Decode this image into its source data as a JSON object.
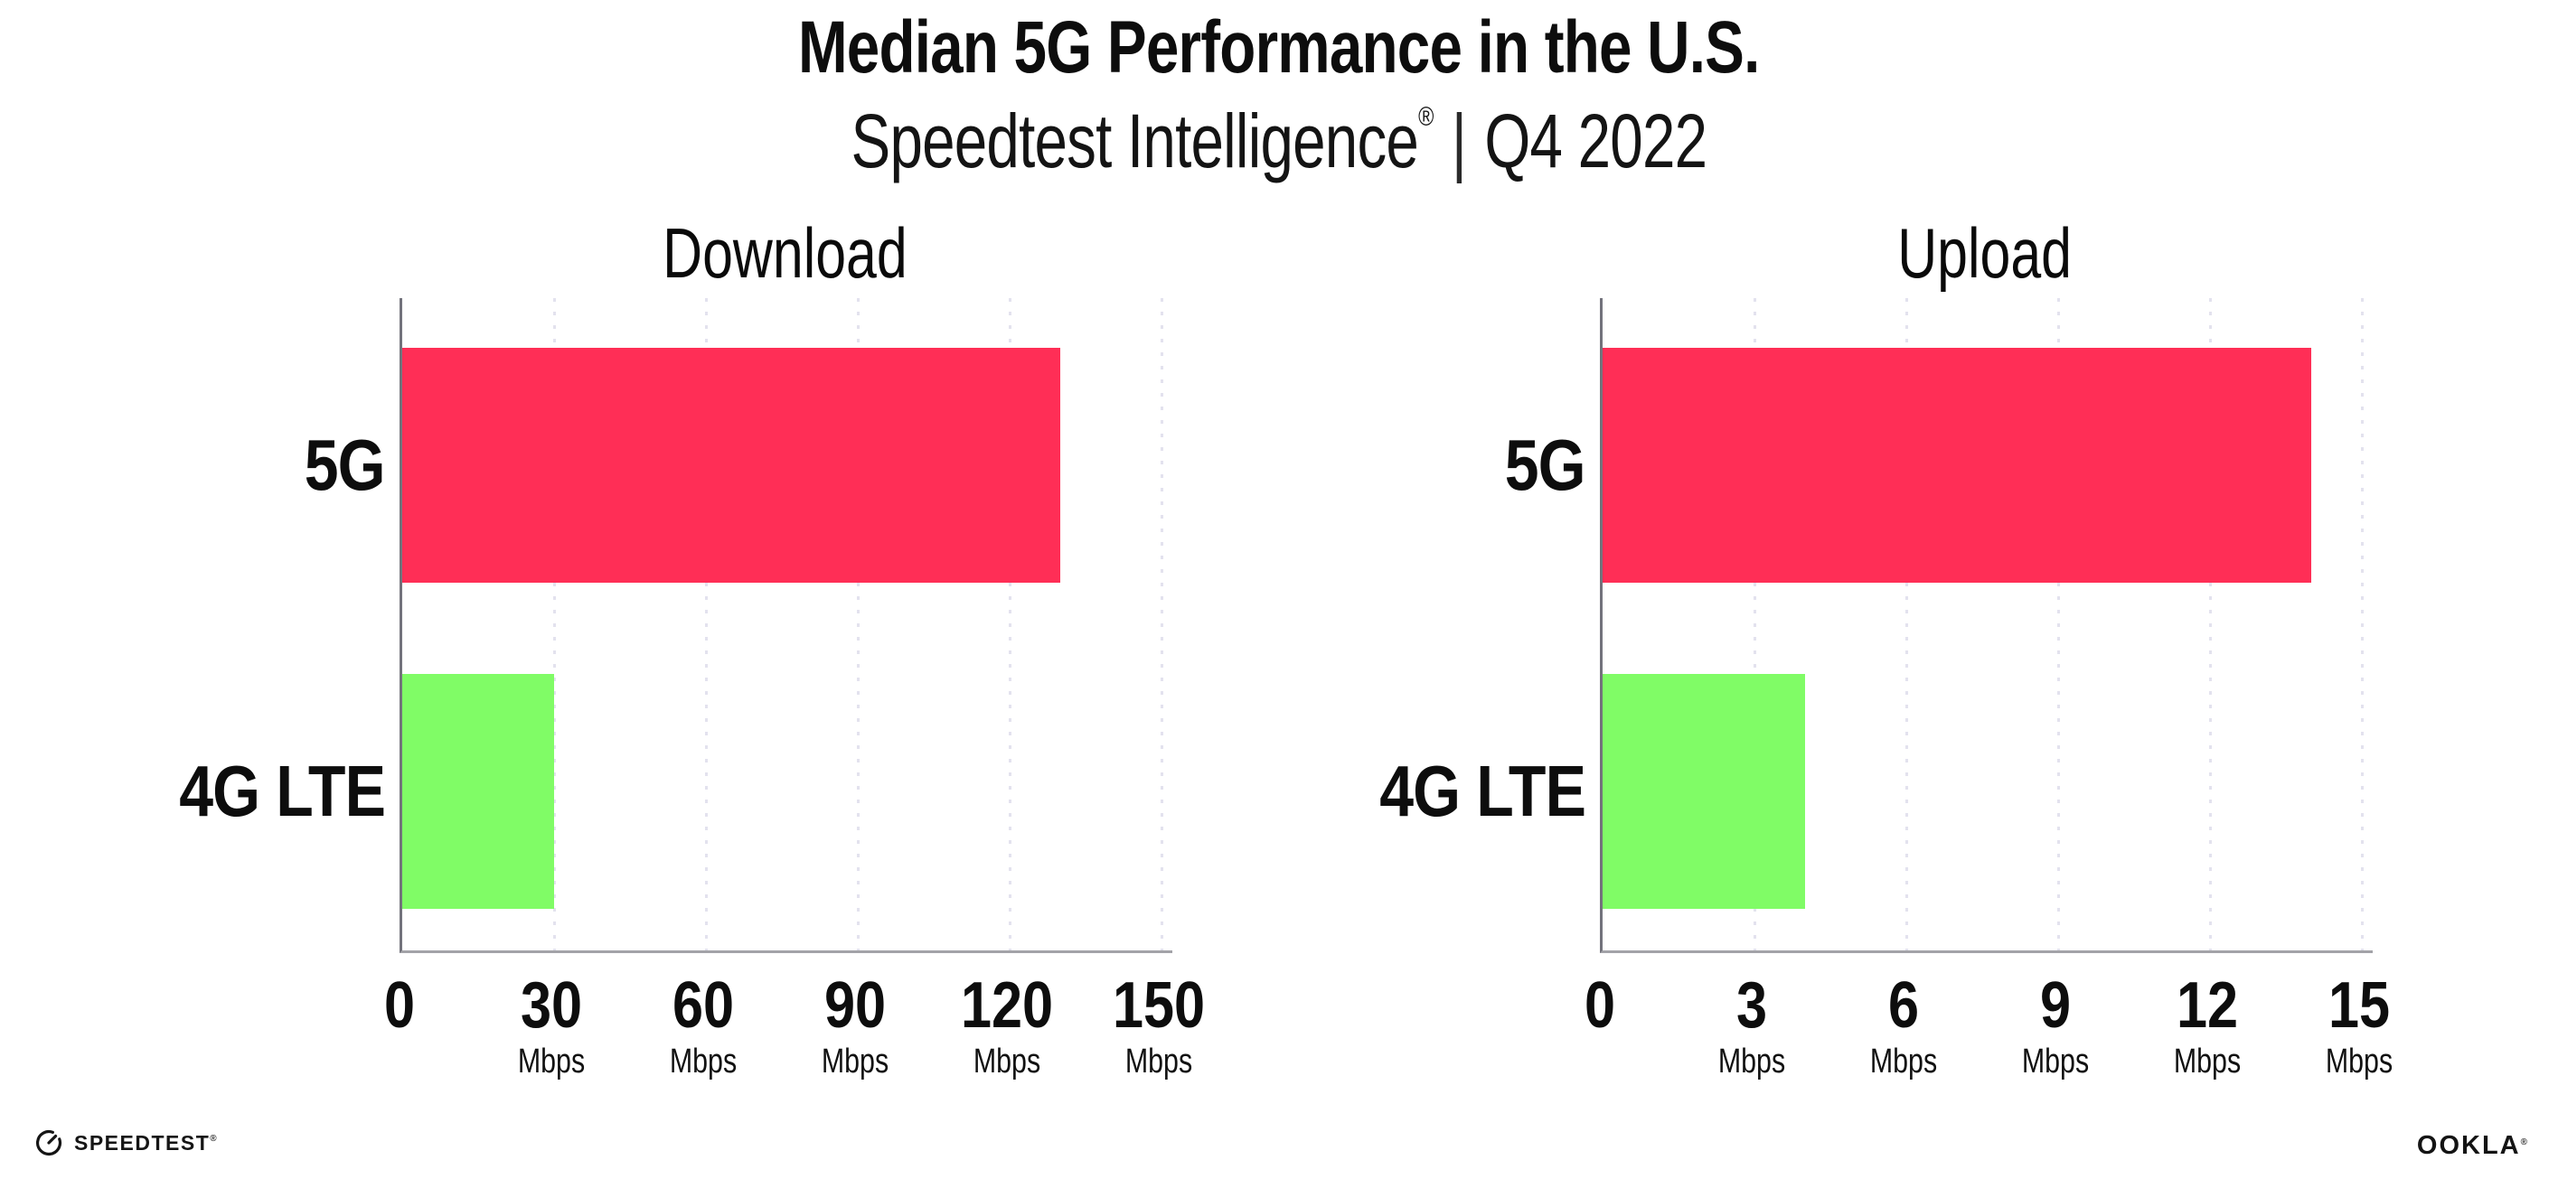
{
  "header": {
    "title": "Median 5G Performance in the U.S.",
    "subtitle": {
      "brand": "Speedtest Intelligence",
      "reg": "®",
      "divider": "|",
      "period": "Q4 2022"
    }
  },
  "chart_data": [
    {
      "type": "bar",
      "orientation": "horizontal",
      "title": "Download",
      "categories": [
        "5G",
        "4G LTE"
      ],
      "values": [
        130,
        30
      ],
      "unit": "Mbps",
      "xlabel": "",
      "ylabel": "",
      "xlim": [
        0,
        150
      ],
      "xticks": [
        0,
        30,
        60,
        90,
        120,
        150
      ],
      "bar_colors": [
        "#FF2E56",
        "#80FC66"
      ],
      "grid": "dotted-vertical-gridlines",
      "legend": "none"
    },
    {
      "type": "bar",
      "orientation": "horizontal",
      "title": "Upload",
      "categories": [
        "5G",
        "4G LTE"
      ],
      "values": [
        14,
        4
      ],
      "unit": "Mbps",
      "xlabel": "",
      "ylabel": "",
      "xlim": [
        0,
        15
      ],
      "xticks": [
        0,
        3,
        6,
        9,
        12,
        15
      ],
      "bar_colors": [
        "#FF2E56",
        "#80FC66"
      ],
      "grid": "dotted-vertical-gridlines",
      "legend": "none"
    }
  ],
  "footer": {
    "left_logo": "SPEEDTEST",
    "left_logo_reg": "®",
    "right_logo": "OOKLA",
    "right_logo_reg": "®"
  },
  "colors": {
    "bar_5g": "#FF2E56",
    "bar_4g_lte": "#80FC66",
    "gridline": "#E3E2EE",
    "x_axis": "#A3A3A8",
    "y_axis": "#73737C",
    "text": "#0D0D0D",
    "background": "#FFFFFF"
  }
}
